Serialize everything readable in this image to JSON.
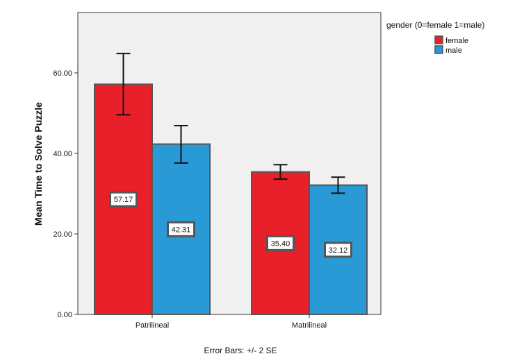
{
  "chart_data": {
    "type": "bar",
    "categories": [
      "Patrilineal",
      "Matrilineal"
    ],
    "series": [
      {
        "name": "female",
        "color": "#e8202a",
        "values": [
          57.17,
          35.4
        ],
        "error_low": [
          49.6,
          33.6
        ],
        "error_high": [
          64.8,
          37.2
        ]
      },
      {
        "name": "male",
        "color": "#2a9ad6",
        "values": [
          42.31,
          32.12
        ],
        "error_low": [
          37.6,
          30.1
        ],
        "error_high": [
          46.9,
          34.1
        ]
      }
    ],
    "data_labels": [
      [
        "57.17",
        "35.40"
      ],
      [
        "42.31",
        "32.12"
      ]
    ],
    "ylabel": "Mean Time to Solve Puzzle",
    "xlabel": "",
    "ylim": [
      0,
      75
    ],
    "yticks": [
      0,
      20,
      40,
      60
    ],
    "ytick_labels": [
      "0.00",
      "20.00",
      "40.00",
      "60.00"
    ],
    "legend_title": "gender (0=female 1=male)",
    "legend_position": "right",
    "footnote": "Error Bars: +/- 2 SE",
    "grid": false,
    "plot_background": "#f0f0f0"
  }
}
